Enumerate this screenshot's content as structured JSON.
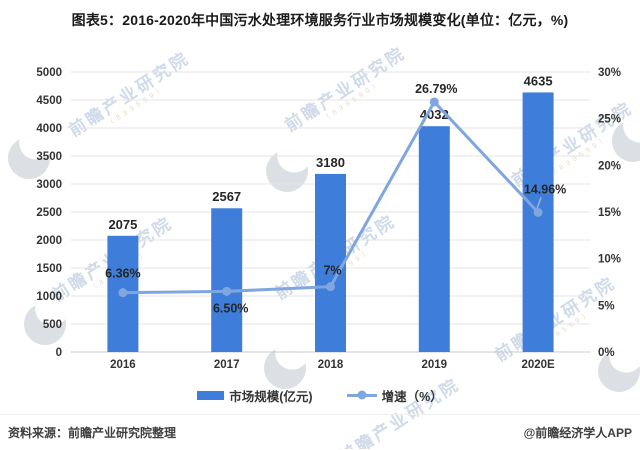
{
  "title": "图表5：2016-2020年中国污水处理环境服务行业市场规模变化(单位：亿元，%)",
  "chart_data": {
    "type": "bar",
    "subtype": "bar-line-combo",
    "title": "图表5：2016-2020年中国污水处理环境服务行业市场规模变化(单位：亿元，%)",
    "categories": [
      "2016",
      "2017",
      "2018",
      "2019",
      "2020E"
    ],
    "series": [
      {
        "name": "市场规模(亿元)",
        "type": "bar",
        "axis": "left",
        "values": [
          2075,
          2567,
          3180,
          4032,
          4635
        ],
        "labels": [
          "2075",
          "2567",
          "3180",
          "4032",
          "4635"
        ],
        "color": "#3E7EDA"
      },
      {
        "name": "增速（%）",
        "type": "line",
        "axis": "right",
        "values": [
          6.36,
          6.5,
          7.0,
          26.79,
          14.96
        ],
        "labels": [
          "6.36%",
          "6.50%",
          "7%",
          "26.79%",
          "14.96%"
        ],
        "color": "#7FA6DF"
      }
    ],
    "left_axis": {
      "min": 0,
      "max": 5000,
      "step": 500,
      "ticks": [
        "5000",
        "4500",
        "4000",
        "3500",
        "3000",
        "2500",
        "2000",
        "1500",
        "1000",
        "500",
        "0"
      ]
    },
    "right_axis": {
      "min": 0,
      "max": 30,
      "step": 5,
      "ticks": [
        "30%",
        "25%",
        "20%",
        "15%",
        "10%",
        "5%",
        "0%"
      ]
    },
    "grid": true,
    "legend_position": "bottom",
    "colors": {
      "bar": "#3E7EDA",
      "line": "#7FA6DF",
      "gridline": "#e4e4e4",
      "baseline": "#c9c9c9",
      "label_text": "#262626",
      "axis_text": "#333333",
      "leader_line": "#9db4d0"
    }
  },
  "legend": {
    "bar_label": "市场规模(亿元)",
    "line_label": "增速（%）"
  },
  "watermark": {
    "text": "前瞻产业研究院",
    "subtext": "（839599）"
  },
  "footer": {
    "source": "资料来源：前瞻产业研究院整理",
    "credit": "@前瞻经济学人APP"
  }
}
